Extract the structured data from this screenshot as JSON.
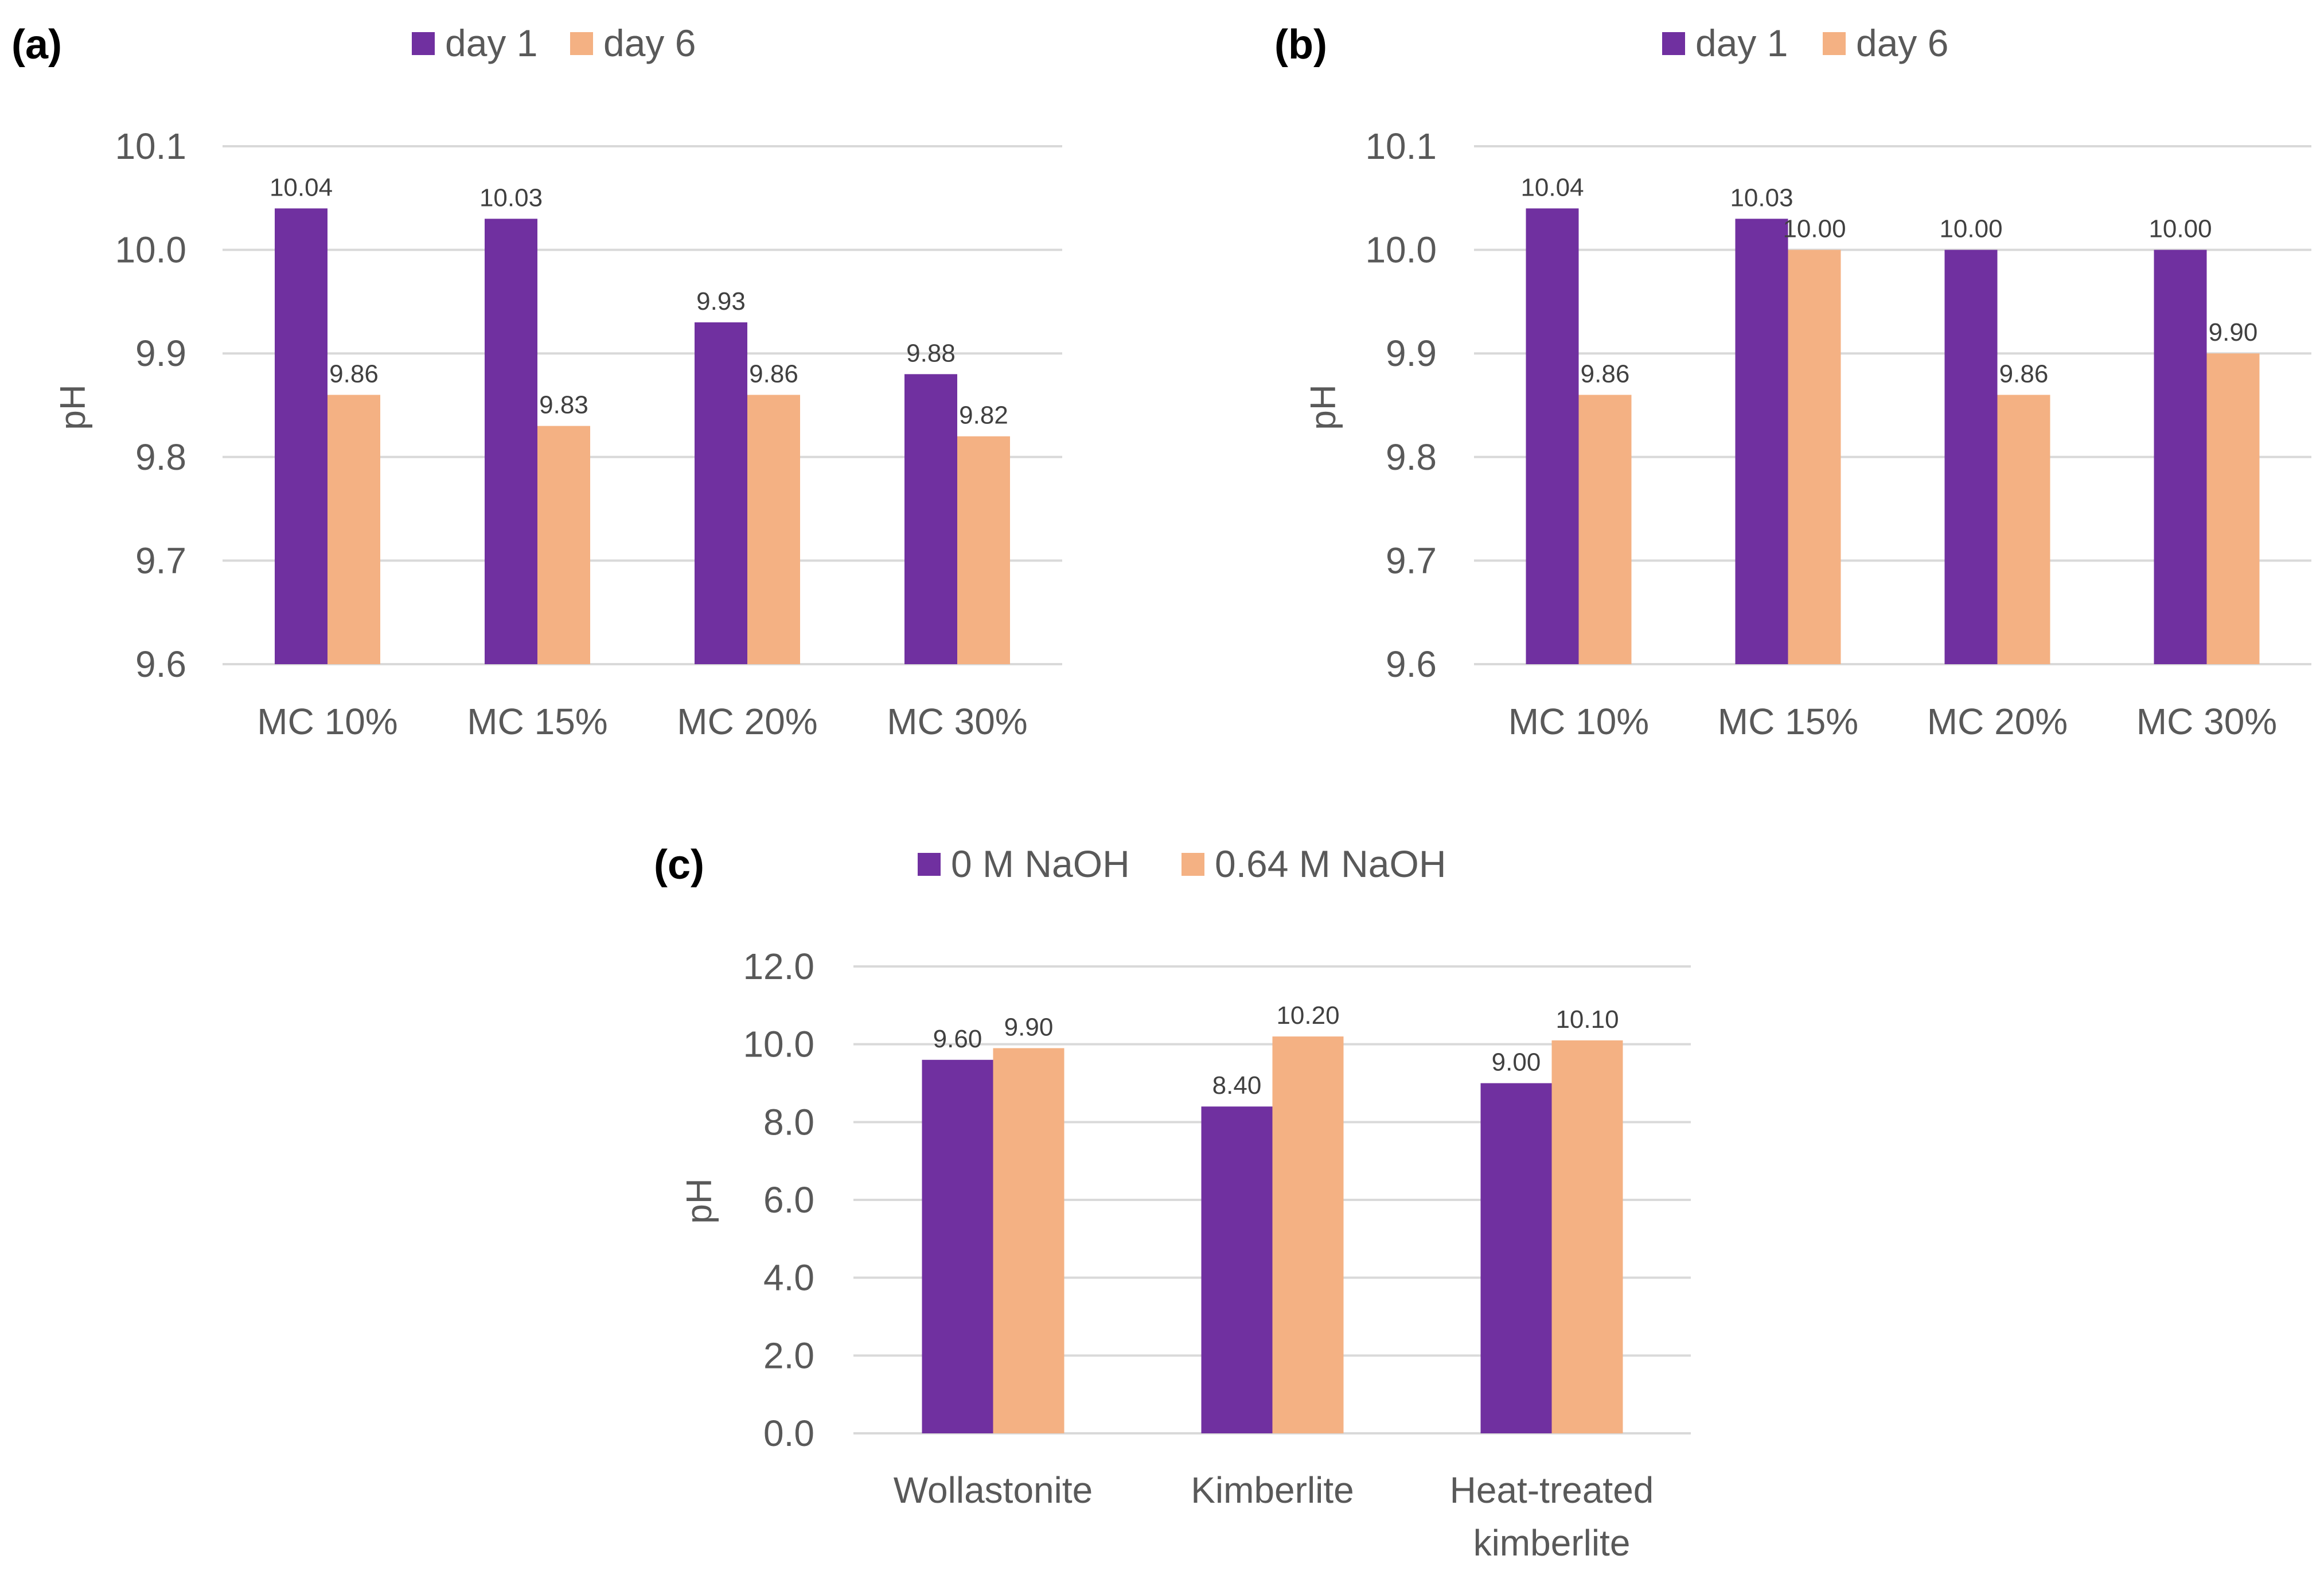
{
  "colors": {
    "series1": "#7030a0",
    "series2": "#f4b183",
    "grid": "#d9d9d9",
    "text": "#595959"
  },
  "chart_data": [
    {
      "panel": "(a)",
      "type": "bar",
      "categories": [
        "MC 10%",
        "MC 15%",
        "MC 20%",
        "MC 30%"
      ],
      "series": [
        {
          "name": "day 1",
          "values": [
            10.04,
            10.03,
            9.93,
            9.88
          ],
          "labels": [
            "10.04",
            "10.03",
            "9.93",
            "9.88"
          ]
        },
        {
          "name": "day 6",
          "values": [
            9.86,
            9.83,
            9.86,
            9.82
          ],
          "labels": [
            "9.86",
            "9.83",
            "9.86",
            "9.82"
          ]
        }
      ],
      "ylabel": "pH",
      "ylim": [
        9.6,
        10.1
      ],
      "yticks": [
        "9.6",
        "9.7",
        "9.8",
        "9.9",
        "10.0",
        "10.1"
      ],
      "legend_position": "top-center",
      "grid": true
    },
    {
      "panel": "(b)",
      "type": "bar",
      "categories": [
        "MC 10%",
        "MC 15%",
        "MC 20%",
        "MC 30%"
      ],
      "series": [
        {
          "name": "day 1",
          "values": [
            10.04,
            10.03,
            10.0,
            10.0
          ],
          "labels": [
            "10.04",
            "10.03",
            "10.00",
            "10.00"
          ]
        },
        {
          "name": "day 6",
          "values": [
            9.86,
            10.0,
            9.86,
            9.9
          ],
          "labels": [
            "9.86",
            "10.00",
            "9.86",
            "9.90"
          ]
        }
      ],
      "ylabel": "pH",
      "ylim": [
        9.6,
        10.1
      ],
      "yticks": [
        "9.6",
        "9.7",
        "9.8",
        "9.9",
        "10.0",
        "10.1"
      ],
      "legend_position": "top-center",
      "grid": true
    },
    {
      "panel": "(c)",
      "type": "bar",
      "categories": [
        [
          "Wollastonite"
        ],
        [
          "Kimberlite"
        ],
        [
          "Heat-treated",
          "kimberlite"
        ]
      ],
      "series": [
        {
          "name": "0 M NaOH",
          "values": [
            9.6,
            8.4,
            9.0
          ],
          "labels": [
            "9.60",
            "8.40",
            "9.00"
          ]
        },
        {
          "name": "0.64 M NaOH",
          "values": [
            9.9,
            10.2,
            10.1
          ],
          "labels": [
            "9.90",
            "10.20",
            "10.10"
          ]
        }
      ],
      "ylabel": "pH",
      "ylim": [
        0,
        12
      ],
      "yticks": [
        "0.0",
        "2.0",
        "4.0",
        "6.0",
        "8.0",
        "10.0",
        "12.0"
      ],
      "legend_position": "top-center",
      "grid": true
    }
  ]
}
